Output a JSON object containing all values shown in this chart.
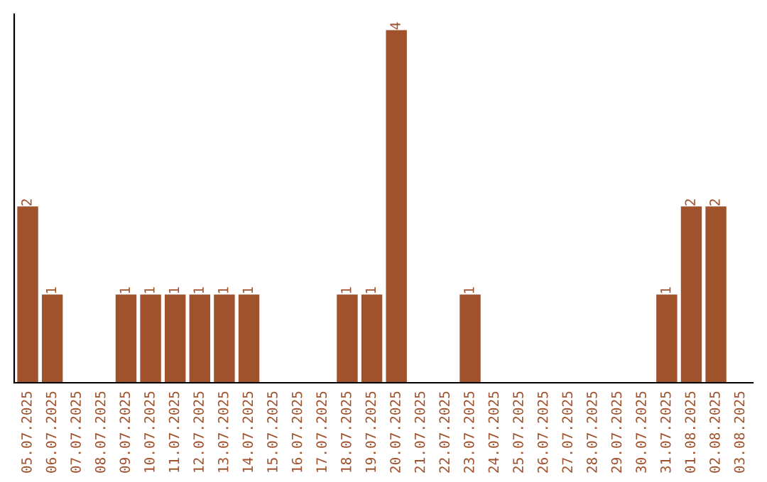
{
  "chart_data": {
    "type": "bar",
    "categories": [
      "05.07.2025",
      "06.07.2025",
      "07.07.2025",
      "08.07.2025",
      "09.07.2025",
      "10.07.2025",
      "11.07.2025",
      "12.07.2025",
      "13.07.2025",
      "14.07.2025",
      "15.07.2025",
      "16.07.2025",
      "17.07.2025",
      "18.07.2025",
      "19.07.2025",
      "20.07.2025",
      "21.07.2025",
      "22.07.2025",
      "23.07.2025",
      "24.07.2025",
      "25.07.2025",
      "26.07.2025",
      "27.07.2025",
      "28.07.2025",
      "29.07.2025",
      "30.07.2025",
      "31.07.2025",
      "01.08.2025",
      "02.08.2025",
      "03.08.2025"
    ],
    "values": [
      2,
      1,
      0,
      0,
      1,
      1,
      1,
      1,
      1,
      1,
      0,
      0,
      0,
      1,
      1,
      4,
      0,
      0,
      1,
      0,
      0,
      0,
      0,
      0,
      0,
      0,
      1,
      2,
      2,
      0
    ],
    "value_labels": [
      "2",
      "1",
      null,
      null,
      "1",
      "1",
      "1",
      "1",
      "1",
      "1",
      null,
      null,
      null,
      "1",
      "1",
      "4",
      null,
      null,
      "1",
      null,
      null,
      null,
      null,
      null,
      null,
      null,
      "1",
      "2",
      "2",
      null
    ],
    "color": "#a0522d",
    "grid": false,
    "legend": false
  }
}
